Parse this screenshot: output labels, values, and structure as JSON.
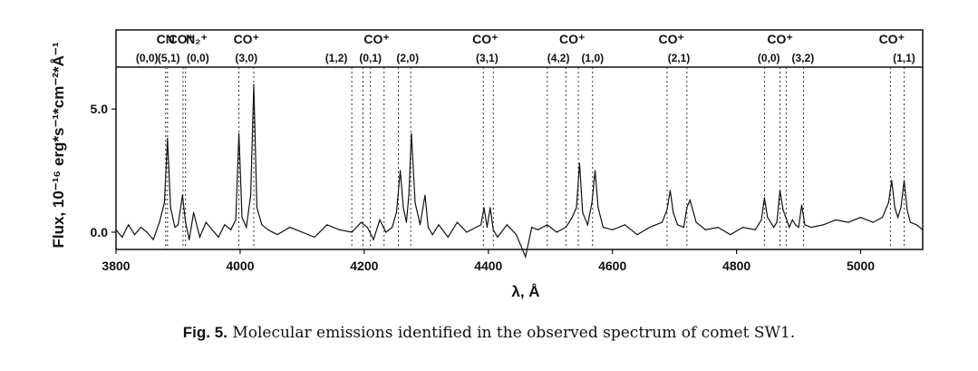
{
  "figure": {
    "caption_label": "Fig. 5.",
    "caption_text": "Molecular emissions identified in the observed spectrum of comet SW1."
  },
  "chart_data": {
    "type": "line",
    "xlabel": "λ, Å",
    "ylabel": "Flux, 10⁻¹⁶ erg*s⁻¹*cm⁻²*Å⁻¹",
    "xlim": [
      3800,
      5100
    ],
    "ylim": [
      -0.7,
      6.7
    ],
    "xticks": [
      "3800",
      "4000",
      "4200",
      "4400",
      "4600",
      "4800",
      "5000"
    ],
    "yticks": [
      "0.0",
      "5.0"
    ],
    "grid": false,
    "series": [
      {
        "x": [
          3800,
          3810,
          3820,
          3830,
          3840,
          3850,
          3860,
          3870,
          3878,
          3883,
          3888,
          3895,
          3900,
          3907,
          3912,
          3918,
          3925,
          3935,
          3945,
          3955,
          3965,
          3975,
          3985,
          3993,
          3998,
          4003,
          4010,
          4017,
          4022,
          4027,
          4035,
          4045,
          4060,
          4080,
          4100,
          4120,
          4140,
          4160,
          4180,
          4195,
          4205,
          4215,
          4225,
          4235,
          4245,
          4252,
          4258,
          4263,
          4268,
          4272,
          4276,
          4282,
          4290,
          4298,
          4303,
          4310,
          4320,
          4335,
          4350,
          4365,
          4380,
          4388,
          4393,
          4398,
          4403,
          4408,
          4415,
          4430,
          4445,
          4460,
          4470,
          4480,
          4495,
          4510,
          4525,
          4535,
          4542,
          4547,
          4552,
          4560,
          4567,
          4572,
          4577,
          4585,
          4600,
          4620,
          4640,
          4660,
          4680,
          4688,
          4693,
          4698,
          4705,
          4715,
          4720,
          4725,
          4735,
          4750,
          4770,
          4790,
          4810,
          4830,
          4840,
          4845,
          4850,
          4860,
          4865,
          4870,
          4875,
          4885,
          4890,
          4895,
          4900,
          4905,
          4910,
          4920,
          4940,
          4960,
          4980,
          5000,
          5020,
          5035,
          5045,
          5050,
          5055,
          5060,
          5065,
          5070,
          5075,
          5080,
          5090,
          5100
        ],
        "y": [
          0.1,
          -0.2,
          0.3,
          -0.1,
          0.2,
          0.0,
          -0.3,
          0.4,
          1.2,
          3.8,
          1.0,
          0.2,
          0.3,
          1.5,
          0.4,
          -0.3,
          0.8,
          -0.2,
          0.4,
          0.1,
          -0.2,
          0.3,
          0.1,
          0.5,
          4.0,
          0.6,
          0.2,
          1.5,
          6.0,
          1.0,
          0.3,
          0.1,
          -0.1,
          0.2,
          0.0,
          -0.2,
          0.3,
          0.1,
          0.0,
          0.4,
          0.2,
          -0.3,
          0.5,
          0.0,
          0.2,
          0.8,
          2.5,
          1.0,
          0.4,
          1.5,
          4.0,
          1.2,
          0.3,
          1.5,
          0.2,
          -0.1,
          0.3,
          -0.2,
          0.4,
          0.0,
          0.2,
          0.3,
          1.0,
          0.2,
          1.0,
          0.1,
          -0.2,
          0.3,
          -0.1,
          -1.0,
          0.2,
          0.1,
          0.3,
          0.0,
          0.2,
          0.6,
          1.0,
          2.8,
          0.8,
          0.3,
          1.2,
          2.5,
          1.0,
          0.2,
          0.1,
          0.3,
          -0.1,
          0.2,
          0.4,
          0.9,
          1.7,
          0.8,
          0.3,
          0.2,
          1.0,
          1.3,
          0.4,
          0.1,
          0.2,
          -0.1,
          0.2,
          0.1,
          0.5,
          1.4,
          0.6,
          0.2,
          0.4,
          1.7,
          0.9,
          0.2,
          0.5,
          0.3,
          0.2,
          1.1,
          0.3,
          0.2,
          0.3,
          0.5,
          0.4,
          0.6,
          0.4,
          0.6,
          1.2,
          2.1,
          1.0,
          0.6,
          1.0,
          2.1,
          0.9,
          0.4,
          0.3,
          0.1
        ]
      }
    ],
    "molecule_labels": [
      {
        "text": "CN",
        "x": 3880
      },
      {
        "text": "CO⁺",
        "x": 3905
      },
      {
        "text": "N₂⁺",
        "x": 3930
      },
      {
        "text": "CO⁺",
        "x": 4010
      },
      {
        "text": "CO⁺",
        "x": 4220
      },
      {
        "text": "CO⁺",
        "x": 4395
      },
      {
        "text": "CO⁺",
        "x": 4535
      },
      {
        "text": "CO⁺",
        "x": 4695
      },
      {
        "text": "CO⁺",
        "x": 4870
      },
      {
        "text": "CO⁺",
        "x": 5050
      }
    ],
    "band_labels": [
      {
        "text": "(0,0)",
        "x": 3850
      },
      {
        "text": "(5,1)",
        "x": 3885
      },
      {
        "text": "(0,0)",
        "x": 3932
      },
      {
        "text": "(3,0)",
        "x": 4010
      },
      {
        "text": "(1,2)",
        "x": 4155
      },
      {
        "text": "(0,1)",
        "x": 4210
      },
      {
        "text": "(2,0)",
        "x": 4270
      },
      {
        "text": "(3,1)",
        "x": 4398
      },
      {
        "text": "(4,2)",
        "x": 4513
      },
      {
        "text": "(1,0)",
        "x": 4568
      },
      {
        "text": "(2,1)",
        "x": 4707
      },
      {
        "text": "(0,0)",
        "x": 4852
      },
      {
        "text": "(3,2)",
        "x": 4907
      },
      {
        "text": "(1,1)",
        "x": 5070
      }
    ],
    "line_markers": [
      3880,
      3883,
      3908,
      3912,
      3998,
      4022,
      4180,
      4198,
      4210,
      4232,
      4255,
      4275,
      4392,
      4408,
      4495,
      4525,
      4545,
      4568,
      4688,
      4720,
      4845,
      4870,
      4880,
      4908,
      5048,
      5070
    ]
  }
}
